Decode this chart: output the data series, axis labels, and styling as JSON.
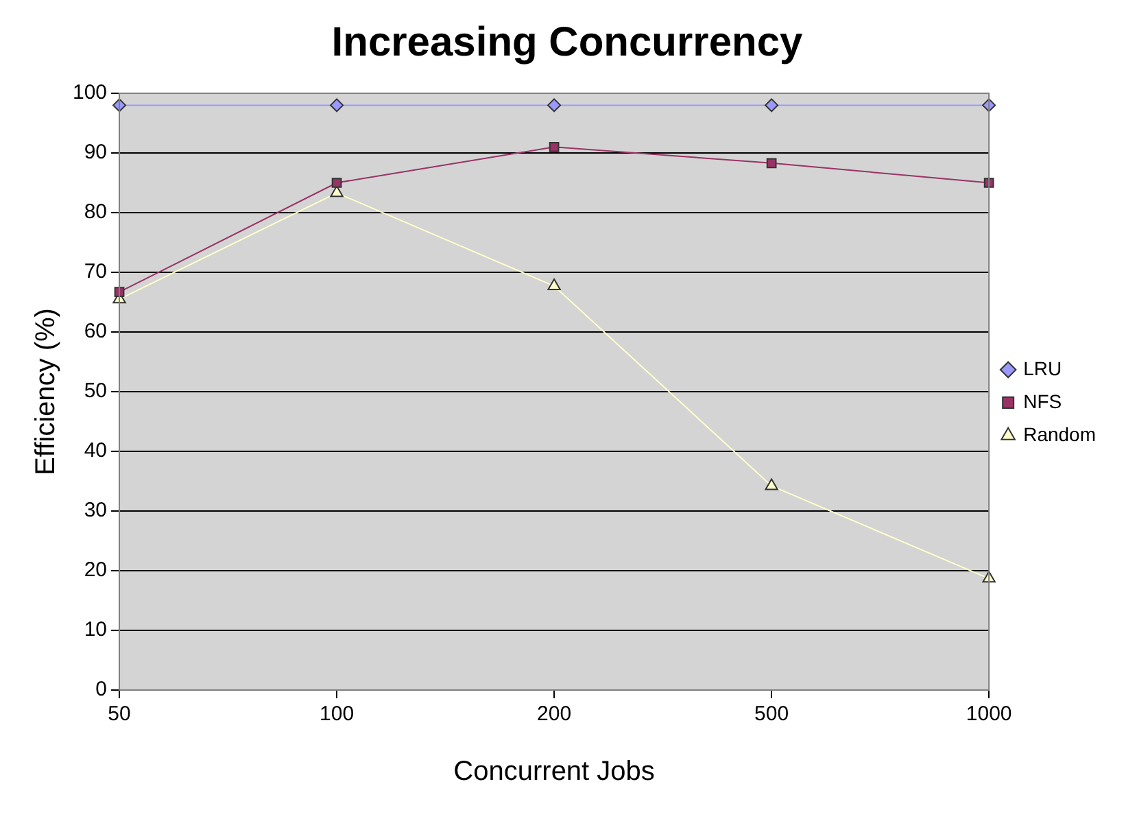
{
  "chart_data": {
    "type": "line",
    "title": "Increasing Concurrency",
    "xlabel": "Concurrent Jobs",
    "ylabel": "Efficiency (%)",
    "categories": [
      "50",
      "100",
      "200",
      "500",
      "1000"
    ],
    "series": [
      {
        "name": "LRU",
        "color": "#9999ff",
        "marker": "diamond",
        "values": [
          98,
          98,
          98,
          98,
          98
        ]
      },
      {
        "name": "NFS",
        "color": "#993366",
        "marker": "square",
        "values": [
          66.7,
          85,
          91,
          88.3,
          85
        ]
      },
      {
        "name": "Random",
        "color": "#ffffcc",
        "marker": "triangle",
        "values": [
          65.5,
          83.3,
          67.7,
          34.2,
          18.7
        ]
      }
    ],
    "ylim": [
      0,
      100
    ],
    "yticks": [
      0,
      10,
      20,
      30,
      40,
      50,
      60,
      70,
      80,
      90,
      100
    ],
    "grid": "y",
    "legend": "right"
  }
}
